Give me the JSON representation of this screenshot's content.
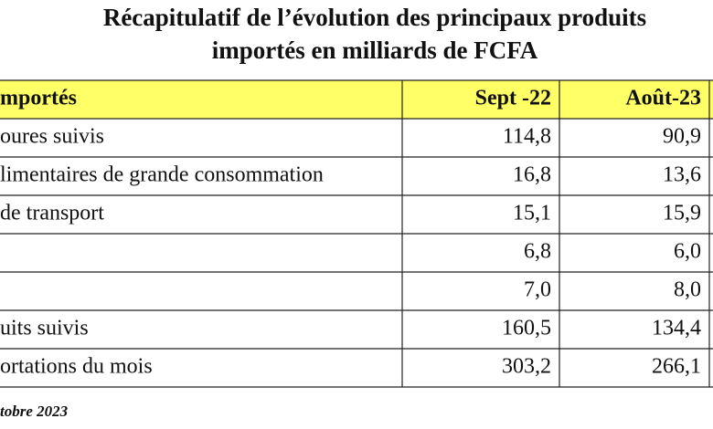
{
  "title": [
    "Récapitulatif de l’évolution des principaux produits",
    "importés en milliards de FCFA"
  ],
  "table": {
    "header": [
      "mportés",
      "Sept -22",
      "Août-23"
    ],
    "rows": [
      {
        "label": "oures suivis",
        "values": [
          "114,8",
          "90,9"
        ]
      },
      {
        "label": "limentaires de grande consommation",
        "values": [
          "16,8",
          "13,6"
        ]
      },
      {
        "label": "de transport",
        "values": [
          "15,1",
          "15,9"
        ]
      },
      {
        "values": [
          "6,8",
          "6,0"
        ]
      },
      {
        "values": [
          "7,0",
          "8,0"
        ]
      },
      {
        "label": "uits suivis",
        "values": [
          "160,5",
          "134,4"
        ]
      },
      {
        "label": "ortations du mois",
        "values": [
          "303,2",
          "266,1"
        ]
      }
    ]
  },
  "footer": "tobre 2023"
}
